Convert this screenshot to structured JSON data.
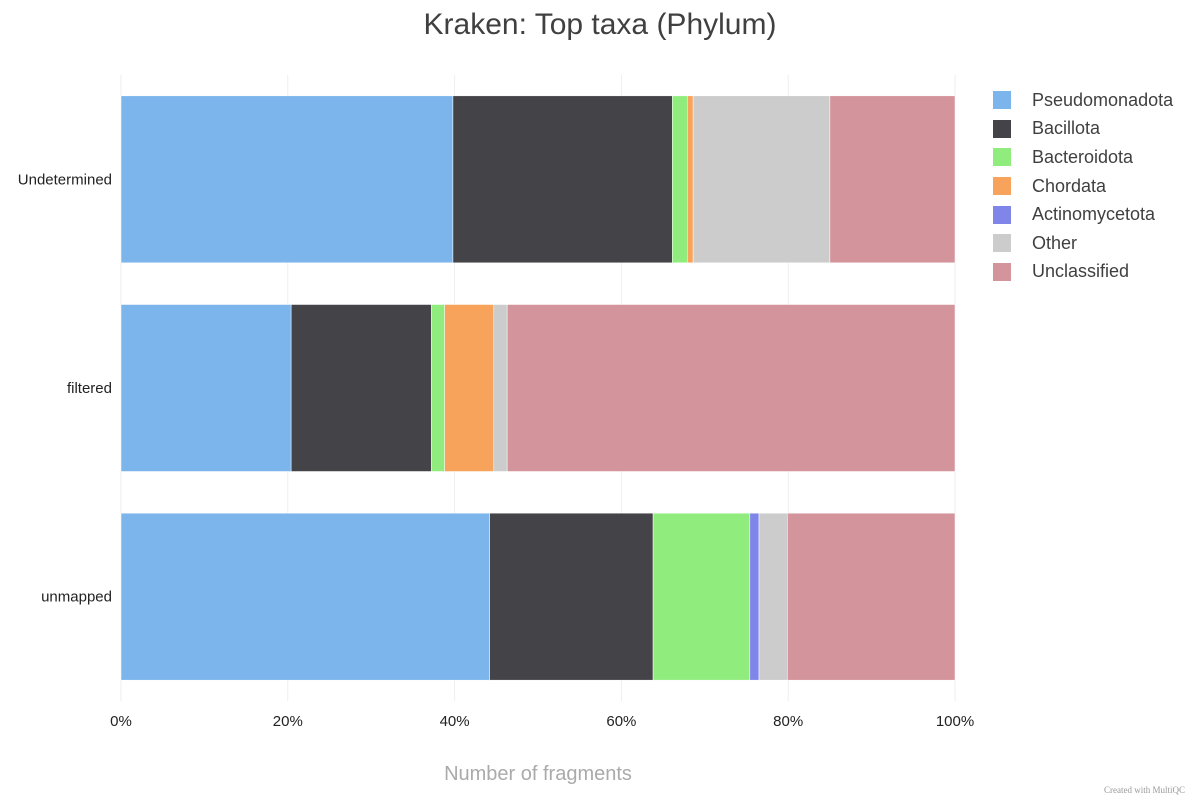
{
  "chart_data": {
    "type": "bar",
    "orientation": "horizontal",
    "stacked": true,
    "percent": true,
    "title": "Kraken: Top taxa (Phylum)",
    "xlabel": "Number of fragments",
    "ylabel": "",
    "xlim": [
      0,
      100
    ],
    "x_ticks": [
      "0%",
      "20%",
      "40%",
      "60%",
      "80%",
      "100%"
    ],
    "categories": [
      "Undetermined",
      "filtered",
      "unmapped"
    ],
    "series": [
      {
        "name": "Pseudomonadota",
        "color": "#7cb5ec",
        "values": [
          39.8,
          20.4,
          44.2
        ]
      },
      {
        "name": "Bacillota",
        "color": "#434348",
        "values": [
          26.3,
          16.8,
          19.6
        ]
      },
      {
        "name": "Bacteroidota",
        "color": "#90ed7d",
        "values": [
          1.8,
          1.6,
          11.6
        ]
      },
      {
        "name": "Chordata",
        "color": "#f7a35c",
        "values": [
          0.7,
          5.9,
          0.0
        ]
      },
      {
        "name": "Actinomycetota",
        "color": "#8085e9",
        "values": [
          0.0,
          0.0,
          1.1
        ]
      },
      {
        "name": "Other",
        "color": "#cccccc",
        "values": [
          16.4,
          1.6,
          3.4
        ]
      },
      {
        "name": "Unclassified",
        "color": "#d4949c",
        "values": [
          15.0,
          53.7,
          20.1
        ]
      }
    ],
    "grid": true,
    "legend_position": "right"
  },
  "credit": "Created with MultiQC"
}
